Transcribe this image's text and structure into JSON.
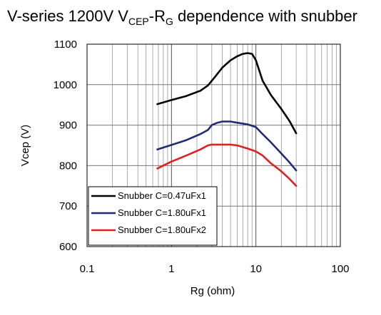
{
  "chart_data": {
    "type": "line",
    "title": {
      "prefix": "V-series 1200V V",
      "sub1": "CEP",
      "mid": "-R",
      "sub2": "G",
      "suffix": " dependence with snubber"
    },
    "xlabel": "Rg (ohm)",
    "ylabel": "Vcep (V)",
    "x_scale": "log",
    "xlim": [
      0.1,
      100
    ],
    "ylim": [
      600,
      1100
    ],
    "x_ticks": [
      0.1,
      1,
      10,
      100
    ],
    "x_tick_labels": [
      "0.1",
      "1",
      "10",
      "100"
    ],
    "y_ticks": [
      600,
      700,
      800,
      900,
      1000,
      1100
    ],
    "y_tick_labels": [
      "600",
      "700",
      "800",
      "900",
      "1000",
      "1100"
    ],
    "grid": true,
    "legend_position": "bottom-left",
    "series": [
      {
        "name": "Snubber C=0.47uFx1",
        "color": "#000000",
        "points": [
          [
            0.68,
            952
          ],
          [
            1.0,
            962
          ],
          [
            1.5,
            972
          ],
          [
            2.2,
            985
          ],
          [
            2.7,
            998
          ],
          [
            3.3,
            1020
          ],
          [
            4.0,
            1042
          ],
          [
            5.0,
            1060
          ],
          [
            6.0,
            1070
          ],
          [
            7.0,
            1076
          ],
          [
            8.0,
            1078
          ],
          [
            9.0,
            1076
          ],
          [
            10,
            1060
          ],
          [
            12,
            1010
          ],
          [
            15,
            975
          ],
          [
            20,
            940
          ],
          [
            25,
            910
          ],
          [
            30,
            880
          ]
        ]
      },
      {
        "name": "Snubber C=1.80uFx1",
        "color": "#1f2c73",
        "points": [
          [
            0.68,
            840
          ],
          [
            1.0,
            851
          ],
          [
            1.5,
            863
          ],
          [
            2.2,
            878
          ],
          [
            2.7,
            888
          ],
          [
            3.0,
            900
          ],
          [
            3.5,
            906
          ],
          [
            4.0,
            909
          ],
          [
            5.0,
            909
          ],
          [
            6.0,
            906
          ],
          [
            8.0,
            902
          ],
          [
            10,
            895
          ],
          [
            12,
            878
          ],
          [
            15,
            858
          ],
          [
            20,
            830
          ],
          [
            25,
            808
          ],
          [
            30,
            788
          ]
        ]
      },
      {
        "name": "Snubber C=1.80uFx2",
        "color": "#e02020",
        "points": [
          [
            0.68,
            793
          ],
          [
            1.0,
            810
          ],
          [
            1.5,
            825
          ],
          [
            2.2,
            840
          ],
          [
            2.7,
            850
          ],
          [
            3.0,
            852
          ],
          [
            4.0,
            852
          ],
          [
            5.0,
            852
          ],
          [
            6.0,
            850
          ],
          [
            8.0,
            842
          ],
          [
            10,
            835
          ],
          [
            12,
            825
          ],
          [
            15,
            806
          ],
          [
            20,
            786
          ],
          [
            25,
            767
          ],
          [
            30,
            750
          ]
        ]
      }
    ]
  }
}
